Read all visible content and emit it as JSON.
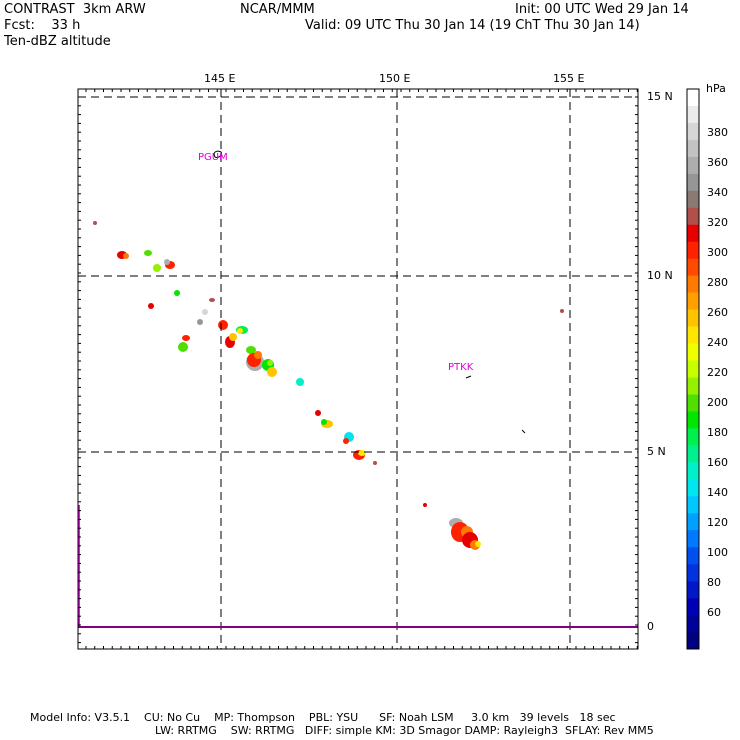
{
  "header": {
    "model": "CONTRAST  3km ARW",
    "center": "NCAR/MMM",
    "init": "Init: 00 UTC Wed 29 Jan 14",
    "fcst": "Fcst:    33 h",
    "valid": "Valid: 09 UTC Thu 30 Jan 14 (19 ChT Thu 30 Jan 14)",
    "field": "Ten-dBZ altitude"
  },
  "map": {
    "lon_labels": [
      "145 E",
      "150 E",
      "155 E"
    ],
    "lat_labels": [
      "15 N",
      "10 N",
      "5 N",
      "0"
    ],
    "stations": [
      {
        "id": "PGUM",
        "lon": 144.8,
        "lat": 13.5
      },
      {
        "id": "PTKK",
        "lon": 152.0,
        "lat": 7.5
      }
    ]
  },
  "colorbar": {
    "unit": "hPa",
    "labels": [
      "380",
      "360",
      "340",
      "320",
      "300",
      "280",
      "260",
      "240",
      "220",
      "200",
      "180",
      "160",
      "140",
      "120",
      "100",
      "80",
      "60"
    ],
    "colors": [
      "#ffffff",
      "#ebebeb",
      "#d6d6d6",
      "#c2c2c2",
      "#adadad",
      "#969696",
      "#8a7a73",
      "#b0504a",
      "#e60000",
      "#ff2200",
      "#ff4a00",
      "#ff7a00",
      "#ffa000",
      "#ffc400",
      "#ffe600",
      "#f0ff00",
      "#c8ff00",
      "#96f000",
      "#50e000",
      "#00e600",
      "#00f050",
      "#00f090",
      "#00f0c8",
      "#00e6f0",
      "#00c8ff",
      "#00a0ff",
      "#0078ff",
      "#0050f0",
      "#0032e0",
      "#0018c8",
      "#0000b4",
      "#00009a",
      "#000080"
    ]
  },
  "footer": {
    "line1": "Model Info: V3.5.1    CU: No Cu    MP: Thompson    PBL: YSU      SF: Noah LSM     3.0 km   39 levels   18 sec",
    "line2": "LW: RRTMG    SW: RRTMG   DIFF: simple KM: 3D Smagor DAMP: Rayleigh3  SFLAY: Rev MM5"
  }
}
